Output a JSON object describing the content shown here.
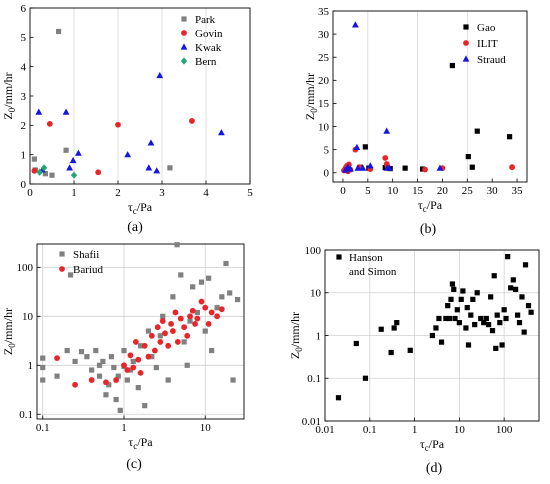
{
  "chart_data": [
    {
      "id": "a",
      "caption": "(a)",
      "type": "scatter",
      "xscale": "linear",
      "yscale": "linear",
      "xlim": [
        0,
        5
      ],
      "ylim": [
        0,
        6
      ],
      "xticks": [
        0,
        1,
        2,
        3,
        4,
        5
      ],
      "yticks": [
        0,
        1,
        2,
        3,
        4,
        5,
        6
      ],
      "xticklabels": [
        "0",
        "1",
        "2",
        "3",
        "4",
        "5"
      ],
      "yticklabels": [
        "0",
        "1",
        "2",
        "3",
        "4",
        "5",
        "6"
      ],
      "xlabel_base": "τ",
      "xlabel_sub": "c",
      "xlabel_tail": "/Pa",
      "ylabel_base": "Z",
      "ylabel_sub": "0",
      "ylabel_tail": "/mm/hr",
      "grid": "dividers",
      "legend_position": "top-right",
      "series": [
        {
          "name": "Park",
          "marker": "square",
          "color": "#808080",
          "points": [
            [
              0.1,
              0.85
            ],
            [
              0.12,
              0.48
            ],
            [
              0.35,
              0.35
            ],
            [
              0.5,
              0.3
            ],
            [
              0.65,
              5.2
            ],
            [
              0.82,
              1.15
            ],
            [
              3.18,
              0.55
            ]
          ]
        },
        {
          "name": "Govin",
          "marker": "circle",
          "color": "#e8262a",
          "points": [
            [
              0.1,
              0.45
            ],
            [
              0.45,
              2.05
            ],
            [
              1.55,
              0.4
            ],
            [
              2.0,
              2.02
            ],
            [
              3.68,
              2.15
            ]
          ]
        },
        {
          "name": "Kwak",
          "marker": "triangle",
          "color": "#1414e6",
          "points": [
            [
              0.2,
              2.45
            ],
            [
              0.28,
              0.48
            ],
            [
              0.82,
              2.45
            ],
            [
              0.9,
              0.55
            ],
            [
              0.98,
              0.8
            ],
            [
              1.1,
              1.05
            ],
            [
              2.22,
              1.0
            ],
            [
              2.7,
              0.55
            ],
            [
              2.75,
              1.4
            ],
            [
              2.88,
              0.45
            ],
            [
              2.95,
              3.7
            ],
            [
              4.35,
              1.75
            ]
          ]
        },
        {
          "name": "Bern",
          "marker": "diamond",
          "color": "#22a878",
          "points": [
            [
              0.22,
              0.4
            ],
            [
              0.32,
              0.55
            ],
            [
              1.0,
              0.3
            ]
          ]
        }
      ]
    },
    {
      "id": "b",
      "caption": "(b)",
      "type": "scatter",
      "xscale": "linear",
      "yscale": "linear",
      "xlim": [
        -2,
        37
      ],
      "ylim": [
        -2,
        35
      ],
      "xticks": [
        0,
        5,
        10,
        15,
        20,
        25,
        30,
        35
      ],
      "yticks": [
        0,
        5,
        10,
        15,
        20,
        25,
        30,
        35
      ],
      "xticklabels": [
        "0",
        "5",
        "10",
        "15",
        "20",
        "25",
        "30",
        "35"
      ],
      "yticklabels": [
        "0",
        "5",
        "10",
        "15",
        "20",
        "25",
        "30",
        "35"
      ],
      "xlabel_base": "τ",
      "xlabel_sub": "c",
      "xlabel_tail": "/Pa",
      "ylabel_base": "Z",
      "ylabel_sub": "0",
      "ylabel_tail": "/mm/hr",
      "grid": "dividers",
      "legend_position": "top-right",
      "series": [
        {
          "name": "Gao",
          "marker": "square",
          "color": "#000000",
          "points": [
            [
              3.5,
              1.2
            ],
            [
              4.5,
              5.6
            ],
            [
              5.2,
              1.0
            ],
            [
              8.5,
              1.1
            ],
            [
              9.5,
              0.9
            ],
            [
              12.5,
              1.0
            ],
            [
              16.0,
              0.8
            ],
            [
              22.0,
              23.2
            ],
            [
              25.2,
              3.5
            ],
            [
              26.0,
              1.2
            ],
            [
              27.0,
              9.0
            ],
            [
              33.5,
              7.8
            ]
          ]
        },
        {
          "name": "ILIT",
          "marker": "circle",
          "color": "#e8262a",
          "points": [
            [
              0.2,
              0.5
            ],
            [
              0.5,
              1.0
            ],
            [
              0.8,
              1.5
            ],
            [
              1.0,
              0.3
            ],
            [
              1.2,
              1.8
            ],
            [
              1.5,
              0.7
            ],
            [
              2.5,
              5.0
            ],
            [
              3.3,
              1.2
            ],
            [
              5.5,
              0.8
            ],
            [
              8.5,
              3.2
            ],
            [
              8.8,
              1.9
            ],
            [
              9.0,
              1.3
            ],
            [
              16.5,
              0.7
            ],
            [
              20.0,
              1.0
            ],
            [
              34.0,
              1.2
            ]
          ]
        },
        {
          "name": "Straud",
          "marker": "triangle",
          "color": "#1414e6",
          "points": [
            [
              0.5,
              0.6
            ],
            [
              1.0,
              1.2
            ],
            [
              1.5,
              0.8
            ],
            [
              2.5,
              32.0
            ],
            [
              2.8,
              5.5
            ],
            [
              3.0,
              1.0
            ],
            [
              4.0,
              1.0
            ],
            [
              5.5,
              1.5
            ],
            [
              8.8,
              9.0
            ],
            [
              8.9,
              1.0
            ],
            [
              9.3,
              1.0
            ],
            [
              19.5,
              1.0
            ]
          ]
        }
      ]
    },
    {
      "id": "c",
      "caption": "(c)",
      "type": "scatter",
      "xscale": "log",
      "yscale": "log",
      "xlim": [
        0.085,
        30
      ],
      "ylim": [
        0.08,
        300
      ],
      "xticks": [
        0.1,
        1,
        10
      ],
      "yticks": [
        0.1,
        1,
        10,
        100
      ],
      "xticklabels": [
        "0.1",
        "1",
        "10"
      ],
      "yticklabels": [
        "0.1",
        "1",
        "10",
        "100"
      ],
      "xlabel_base": "τ",
      "xlabel_sub": "c",
      "xlabel_tail": "/Pa",
      "ylabel_base": "Z",
      "ylabel_sub": "0",
      "ylabel_tail": "/mm/hr",
      "grid": "decades",
      "legend_position": "top-left",
      "series": [
        {
          "name": "Shafii",
          "marker": "square",
          "color": "#808080",
          "points": [
            [
              0.1,
              1.4
            ],
            [
              0.1,
              0.9
            ],
            [
              0.1,
              0.5
            ],
            [
              0.15,
              0.6
            ],
            [
              0.2,
              2.0
            ],
            [
              0.22,
              70
            ],
            [
              0.25,
              1.2
            ],
            [
              0.3,
              1.9
            ],
            [
              0.35,
              1.5
            ],
            [
              0.4,
              0.8
            ],
            [
              0.45,
              2.0
            ],
            [
              0.5,
              1.0
            ],
            [
              0.5,
              0.6
            ],
            [
              0.55,
              1.2
            ],
            [
              0.6,
              0.25
            ],
            [
              0.65,
              0.4
            ],
            [
              0.7,
              1.5
            ],
            [
              0.75,
              0.9
            ],
            [
              0.8,
              0.2
            ],
            [
              0.85,
              0.6
            ],
            [
              0.9,
              0.12
            ],
            [
              1.0,
              0.95
            ],
            [
              1.0,
              2.0
            ],
            [
              1.1,
              0.5
            ],
            [
              1.2,
              0.8
            ],
            [
              1.3,
              1.2
            ],
            [
              1.5,
              0.35
            ],
            [
              1.6,
              2.5
            ],
            [
              1.8,
              0.15
            ],
            [
              2.0,
              5.0
            ],
            [
              2.2,
              1.5
            ],
            [
              2.5,
              0.9
            ],
            [
              2.8,
              4.0
            ],
            [
              3.0,
              10.0
            ],
            [
              3.5,
              0.5
            ],
            [
              4.0,
              25.0
            ],
            [
              4.5,
              290
            ],
            [
              5.0,
              70
            ],
            [
              5.5,
              3.0
            ],
            [
              6.0,
              1.0
            ],
            [
              6.5,
              8.0
            ],
            [
              7.0,
              40
            ],
            [
              8.0,
              12.0
            ],
            [
              9.0,
              50
            ],
            [
              10.0,
              5.0
            ],
            [
              11.0,
              60
            ],
            [
              12.0,
              2.0
            ],
            [
              14.0,
              15.0
            ],
            [
              16.0,
              25.0
            ],
            [
              18.0,
              120
            ],
            [
              20.0,
              30.0
            ],
            [
              22.0,
              0.5
            ],
            [
              25.0,
              22.0
            ]
          ]
        },
        {
          "name": "Bariud",
          "marker": "circle",
          "color": "#e8262a",
          "points": [
            [
              0.15,
              1.4
            ],
            [
              0.25,
              0.4
            ],
            [
              0.4,
              0.5
            ],
            [
              0.6,
              0.45
            ],
            [
              0.8,
              0.5
            ],
            [
              1.0,
              1.0
            ],
            [
              1.1,
              0.8
            ],
            [
              1.2,
              1.6
            ],
            [
              1.3,
              0.9
            ],
            [
              1.4,
              3.0
            ],
            [
              1.5,
              1.3
            ],
            [
              1.6,
              0.7
            ],
            [
              1.8,
              2.5
            ],
            [
              2.0,
              1.5
            ],
            [
              2.2,
              4.0
            ],
            [
              2.4,
              2.0
            ],
            [
              2.6,
              6.0
            ],
            [
              2.8,
              3.0
            ],
            [
              3.0,
              8.0
            ],
            [
              3.2,
              4.5
            ],
            [
              3.5,
              2.5
            ],
            [
              3.8,
              7.0
            ],
            [
              4.0,
              5.0
            ],
            [
              4.3,
              12.0
            ],
            [
              4.6,
              3.0
            ],
            [
              5.0,
              9.0
            ],
            [
              5.5,
              6.0
            ],
            [
              6.0,
              4.0
            ],
            [
              6.5,
              10.0
            ],
            [
              7.0,
              13.0
            ],
            [
              7.5,
              7.0
            ],
            [
              8.0,
              9.0
            ],
            [
              9.0,
              20.0
            ],
            [
              10.0,
              15.0
            ],
            [
              11.0,
              7.0
            ],
            [
              12.0,
              12.0
            ],
            [
              14.0,
              10.0
            ],
            [
              16.0,
              14.0
            ]
          ]
        }
      ]
    },
    {
      "id": "d",
      "caption": "(d)",
      "type": "scatter",
      "xscale": "log",
      "yscale": "log",
      "xlim": [
        0.01,
        600
      ],
      "ylim": [
        0.01,
        100
      ],
      "xticks": [
        0.01,
        0.1,
        1,
        10,
        100
      ],
      "yticks": [
        0.01,
        0.1,
        1,
        10,
        100
      ],
      "xticklabels": [
        "0.01",
        "0.1",
        "1",
        "10",
        "100"
      ],
      "yticklabels": [
        "0.01",
        "0.1",
        "1",
        "10",
        "100"
      ],
      "xlabel_base": "τ",
      "xlabel_sub": "c",
      "xlabel_tail": "/Pa",
      "ylabel_base": "Z",
      "ylabel_sub": "0",
      "ylabel_tail": "/mm/hr",
      "grid": "decades",
      "legend_position": "top-left",
      "legend_lines": [
        "Hanson",
        "and Simon"
      ],
      "series": [
        {
          "name": "Hanson and Simon",
          "marker": "square",
          "color": "#000000",
          "points": [
            [
              0.02,
              0.035
            ],
            [
              0.05,
              0.65
            ],
            [
              0.08,
              0.1
            ],
            [
              0.18,
              1.4
            ],
            [
              0.3,
              0.4
            ],
            [
              0.35,
              1.5
            ],
            [
              0.4,
              2.0
            ],
            [
              0.8,
              0.45
            ],
            [
              2.5,
              1.0
            ],
            [
              3.0,
              1.5
            ],
            [
              3.5,
              2.5
            ],
            [
              4.0,
              0.7
            ],
            [
              5.0,
              2.5
            ],
            [
              5.5,
              5.0
            ],
            [
              6.0,
              2.5
            ],
            [
              6.5,
              7.0
            ],
            [
              7.0,
              16.0
            ],
            [
              7.5,
              12.0
            ],
            [
              8.0,
              2.5
            ],
            [
              9.0,
              4.0
            ],
            [
              10.0,
              2.0
            ],
            [
              11.0,
              7.0
            ],
            [
              12.0,
              11.0
            ],
            [
              14.0,
              1.5
            ],
            [
              15.0,
              4.5
            ],
            [
              16.0,
              0.6
            ],
            [
              18.0,
              3.0
            ],
            [
              20.0,
              7.0
            ],
            [
              22.0,
              1.8
            ],
            [
              25.0,
              10.0
            ],
            [
              30.0,
              2.5
            ],
            [
              35.0,
              2.0
            ],
            [
              40.0,
              2.5
            ],
            [
              45.0,
              1.8
            ],
            [
              50.0,
              8.0
            ],
            [
              55.0,
              1.3
            ],
            [
              60.0,
              25.0
            ],
            [
              65.0,
              0.5
            ],
            [
              70.0,
              3.0
            ],
            [
              80.0,
              2.0
            ],
            [
              90.0,
              0.6
            ],
            [
              100.0,
              4.0
            ],
            [
              110.0,
              2.5
            ],
            [
              120.0,
              70
            ],
            [
              140.0,
              13.0
            ],
            [
              160.0,
              20.0
            ],
            [
              180.0,
              12.0
            ],
            [
              200.0,
              3.0
            ],
            [
              220.0,
              2.0
            ],
            [
              250.0,
              8.0
            ],
            [
              280.0,
              1.2
            ],
            [
              300.0,
              45.0
            ],
            [
              350.0,
              5.0
            ],
            [
              400.0,
              3.5
            ]
          ]
        }
      ]
    }
  ]
}
